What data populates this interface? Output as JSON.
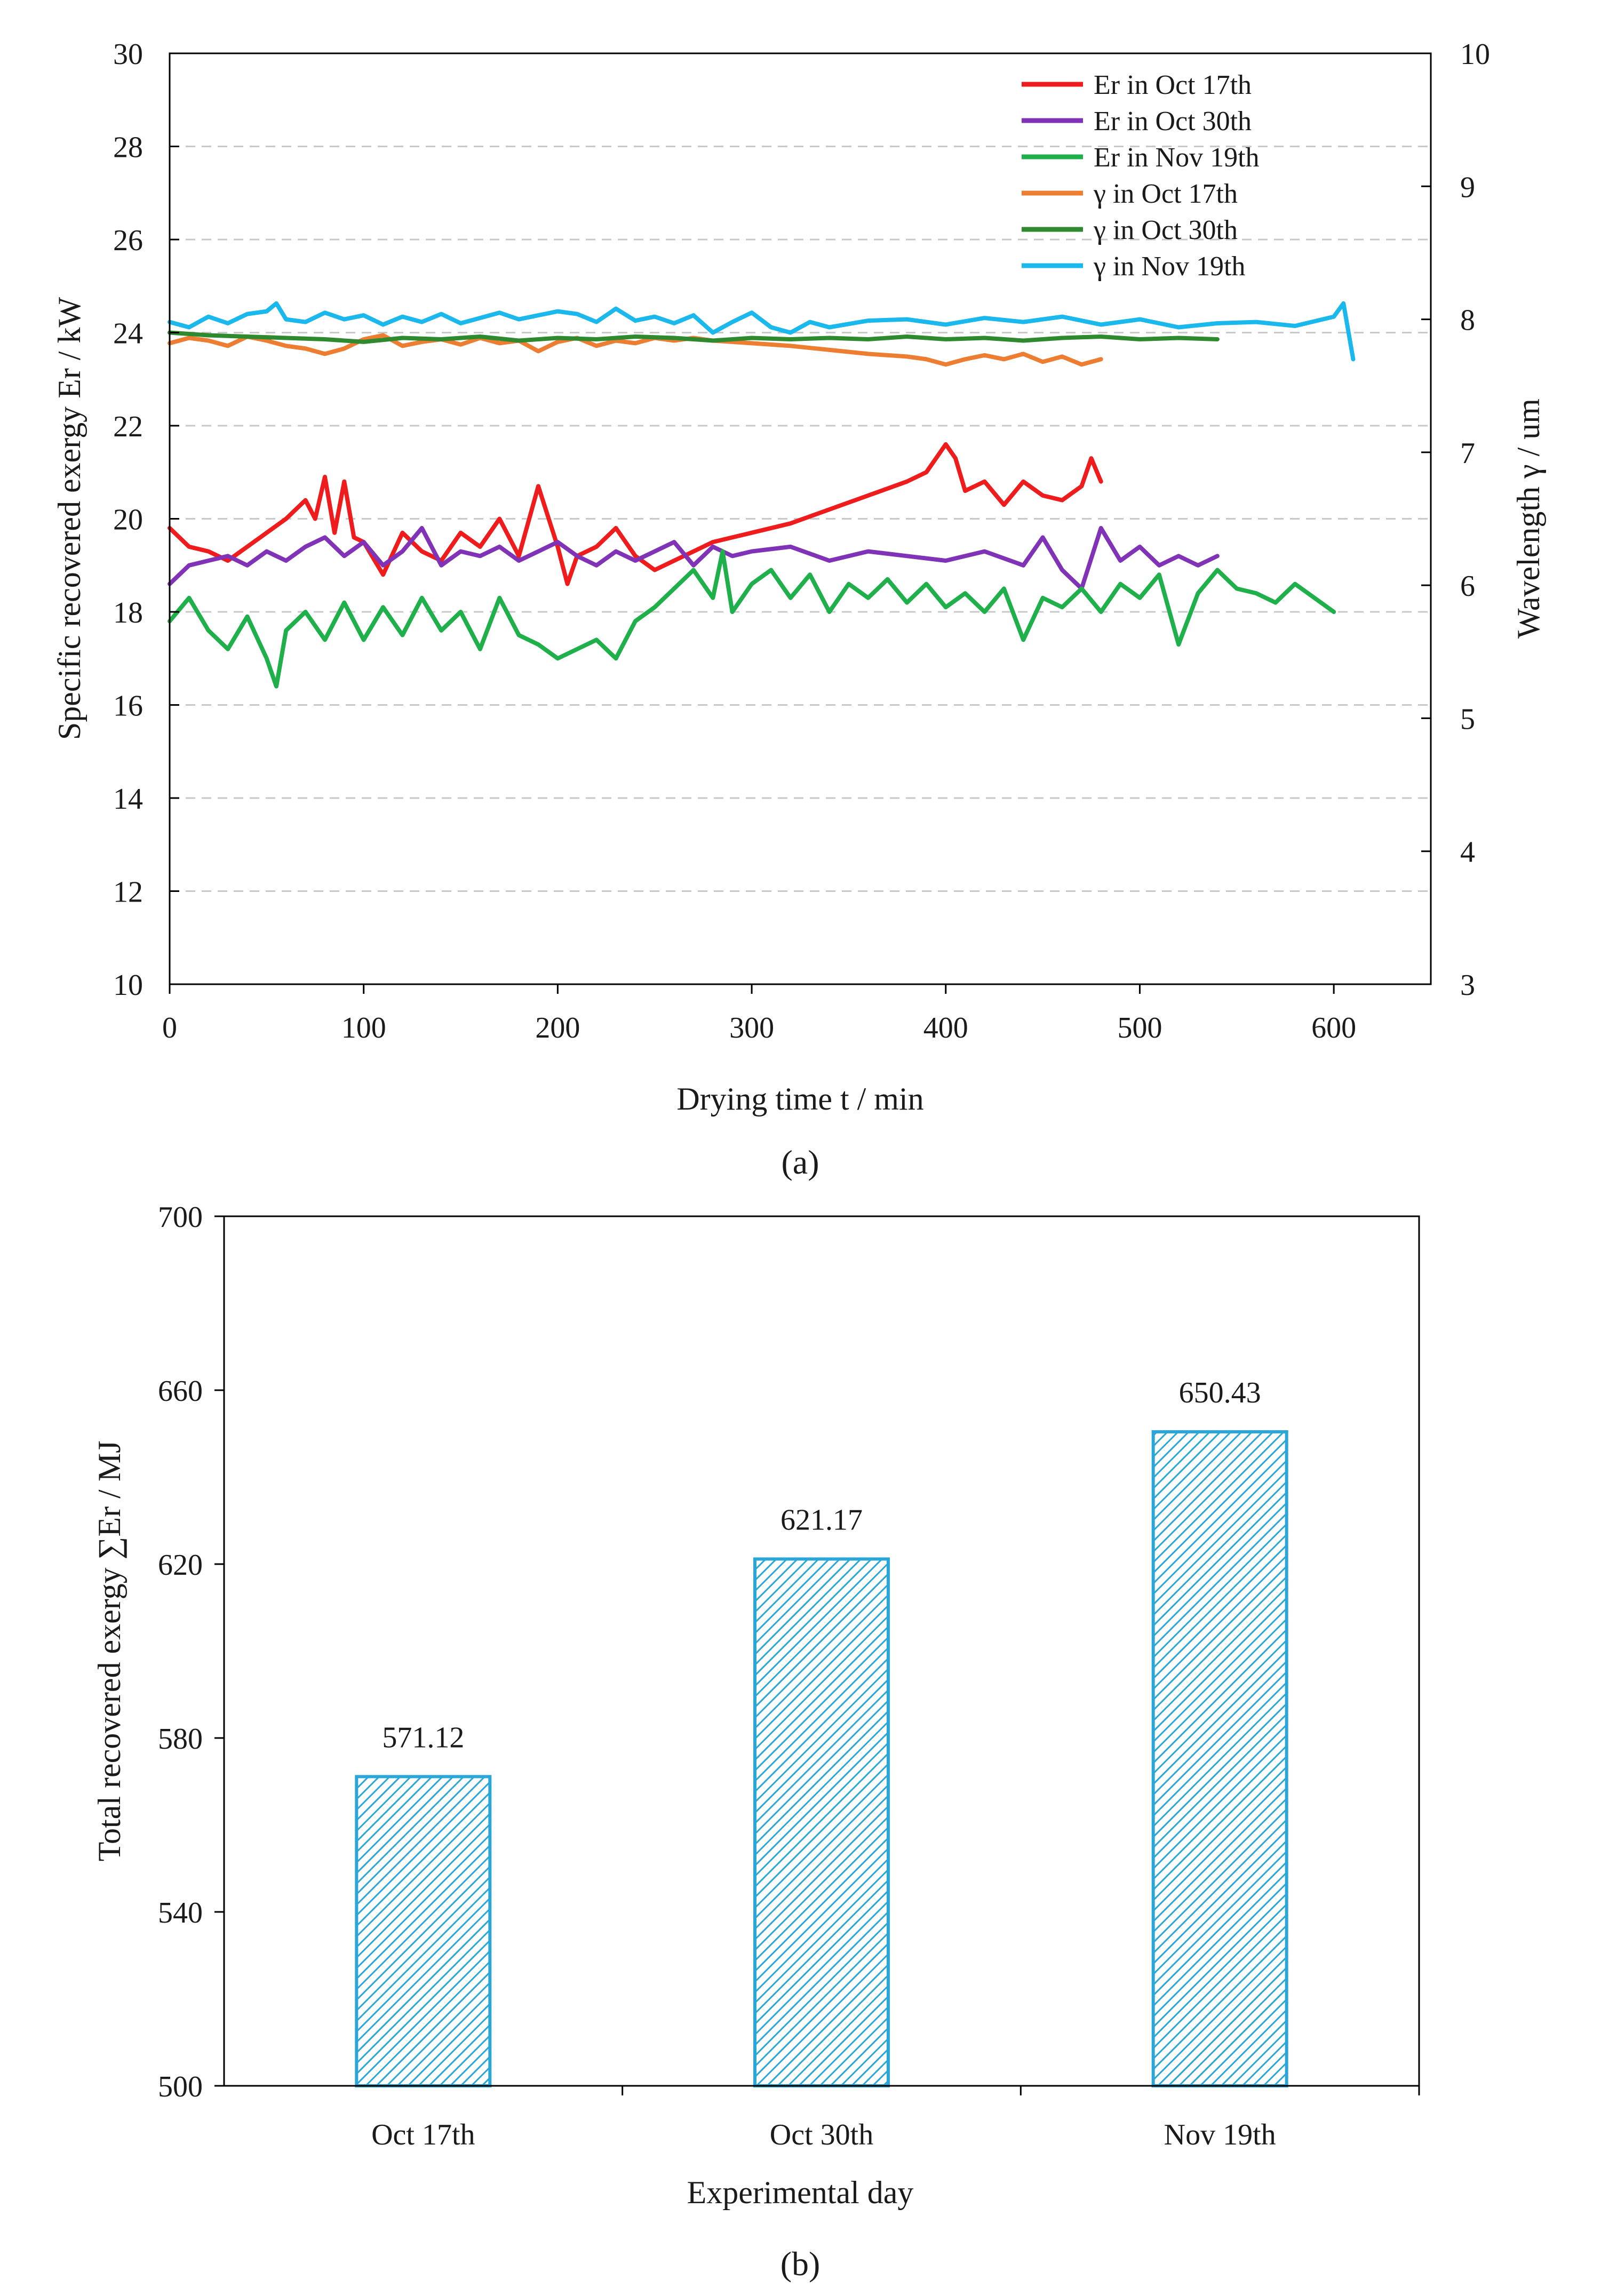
{
  "chart_data": [
    {
      "panel": "(a)",
      "type": "line",
      "xlabel": "Drying time t / min",
      "ylabel_left": "Specific recovered exergy Er / kW",
      "ylabel_right": "Wavelength γ / um",
      "xlim": [
        0,
        650
      ],
      "xticks": [
        0,
        100,
        200,
        300,
        400,
        500,
        600
      ],
      "ylim_left": [
        10,
        30
      ],
      "yticks_left": [
        10,
        12,
        14,
        16,
        18,
        20,
        22,
        24,
        26,
        28,
        30
      ],
      "ylim_right": [
        3,
        10
      ],
      "yticks_right": [
        3,
        4,
        5,
        6,
        7,
        8,
        9,
        10
      ],
      "grid": "horizontal dashed",
      "legend_position": "top-right",
      "series": [
        {
          "name": "Er in Oct 17th",
          "axis": "left",
          "color": "#ee1c1c",
          "x": [
            0,
            10,
            20,
            30,
            40,
            50,
            60,
            70,
            75,
            80,
            85,
            90,
            95,
            100,
            110,
            120,
            130,
            140,
            150,
            160,
            170,
            180,
            190,
            200,
            205,
            210,
            220,
            230,
            240,
            250,
            260,
            270,
            280,
            290,
            300,
            320,
            340,
            360,
            380,
            390,
            400,
            405,
            410,
            420,
            430,
            440,
            450,
            460,
            470,
            475,
            480
          ],
          "y": [
            19.8,
            19.4,
            19.3,
            19.1,
            19.4,
            19.7,
            20.0,
            20.4,
            20.0,
            20.9,
            19.7,
            20.8,
            19.6,
            19.5,
            18.8,
            19.7,
            19.3,
            19.1,
            19.7,
            19.4,
            20.0,
            19.2,
            20.7,
            19.4,
            18.6,
            19.2,
            19.4,
            19.8,
            19.2,
            18.9,
            19.1,
            19.3,
            19.5,
            19.6,
            19.7,
            19.9,
            20.2,
            20.5,
            20.8,
            21.0,
            21.6,
            21.3,
            20.6,
            20.8,
            20.3,
            20.8,
            20.5,
            20.4,
            20.7,
            21.3,
            20.8
          ]
        },
        {
          "name": "Er in Oct 30th",
          "axis": "left",
          "color": "#8033b7",
          "x": [
            0,
            10,
            20,
            30,
            40,
            50,
            60,
            70,
            80,
            90,
            100,
            110,
            120,
            130,
            140,
            150,
            160,
            170,
            180,
            190,
            200,
            210,
            220,
            230,
            240,
            250,
            260,
            270,
            280,
            290,
            300,
            320,
            340,
            360,
            380,
            400,
            420,
            440,
            450,
            460,
            470,
            480,
            490,
            500,
            510,
            520,
            530,
            540
          ],
          "y": [
            18.6,
            19.0,
            19.1,
            19.2,
            19.0,
            19.3,
            19.1,
            19.4,
            19.6,
            19.2,
            19.5,
            19.0,
            19.3,
            19.8,
            19.0,
            19.3,
            19.2,
            19.4,
            19.1,
            19.3,
            19.5,
            19.2,
            19.0,
            19.3,
            19.1,
            19.3,
            19.5,
            19.0,
            19.4,
            19.2,
            19.3,
            19.4,
            19.1,
            19.3,
            19.2,
            19.1,
            19.3,
            19.0,
            19.6,
            18.9,
            18.5,
            19.8,
            19.1,
            19.4,
            19.0,
            19.2,
            19.0,
            19.2
          ]
        },
        {
          "name": "Er in Nov 19th",
          "axis": "left",
          "color": "#1fb04b",
          "x": [
            0,
            10,
            20,
            30,
            40,
            50,
            55,
            60,
            70,
            80,
            90,
            100,
            110,
            120,
            130,
            140,
            150,
            160,
            170,
            180,
            190,
            200,
            210,
            220,
            230,
            240,
            250,
            260,
            270,
            280,
            285,
            290,
            300,
            310,
            320,
            330,
            340,
            350,
            360,
            370,
            380,
            390,
            400,
            410,
            420,
            430,
            440,
            450,
            460,
            470,
            480,
            490,
            500,
            510,
            520,
            530,
            540,
            550,
            560,
            570,
            580,
            590,
            600
          ],
          "y": [
            17.8,
            18.3,
            17.6,
            17.2,
            17.9,
            17.0,
            16.4,
            17.6,
            18.0,
            17.4,
            18.2,
            17.4,
            18.1,
            17.5,
            18.3,
            17.6,
            18.0,
            17.2,
            18.3,
            17.5,
            17.3,
            17.0,
            17.2,
            17.4,
            17.0,
            17.8,
            18.1,
            18.5,
            18.9,
            18.3,
            19.3,
            18.0,
            18.6,
            18.9,
            18.3,
            18.8,
            18.0,
            18.6,
            18.3,
            18.7,
            18.2,
            18.6,
            18.1,
            18.4,
            18.0,
            18.5,
            17.4,
            18.3,
            18.1,
            18.5,
            18.0,
            18.6,
            18.3,
            18.8,
            17.3,
            18.4,
            18.9,
            18.5,
            18.4,
            18.2,
            18.6,
            18.3,
            18.0
          ]
        },
        {
          "name": "γ in Oct 17th",
          "axis": "right",
          "color": "#ed7d31",
          "x": [
            0,
            10,
            20,
            30,
            40,
            50,
            60,
            70,
            80,
            90,
            100,
            110,
            120,
            130,
            140,
            150,
            160,
            170,
            180,
            190,
            200,
            210,
            220,
            230,
            240,
            250,
            260,
            270,
            280,
            300,
            320,
            340,
            360,
            380,
            390,
            400,
            410,
            420,
            430,
            440,
            450,
            460,
            470,
            480
          ],
          "y": [
            7.82,
            7.86,
            7.84,
            7.8,
            7.87,
            7.84,
            7.8,
            7.78,
            7.74,
            7.78,
            7.85,
            7.88,
            7.8,
            7.83,
            7.85,
            7.81,
            7.86,
            7.82,
            7.84,
            7.76,
            7.83,
            7.86,
            7.8,
            7.84,
            7.82,
            7.86,
            7.84,
            7.86,
            7.84,
            7.82,
            7.8,
            7.77,
            7.74,
            7.72,
            7.7,
            7.66,
            7.7,
            7.73,
            7.7,
            7.74,
            7.68,
            7.72,
            7.66,
            7.7
          ]
        },
        {
          "name": "γ in Oct 30th",
          "axis": "right",
          "color": "#2f8a2f",
          "x": [
            0,
            20,
            40,
            60,
            80,
            100,
            120,
            140,
            160,
            180,
            200,
            220,
            240,
            260,
            280,
            300,
            320,
            340,
            360,
            380,
            400,
            420,
            440,
            460,
            480,
            500,
            520,
            540
          ],
          "y": [
            7.9,
            7.88,
            7.87,
            7.86,
            7.85,
            7.83,
            7.86,
            7.85,
            7.87,
            7.84,
            7.86,
            7.85,
            7.87,
            7.86,
            7.84,
            7.86,
            7.85,
            7.86,
            7.85,
            7.87,
            7.85,
            7.86,
            7.84,
            7.86,
            7.87,
            7.85,
            7.86,
            7.85
          ]
        },
        {
          "name": "γ in Nov 19th",
          "axis": "right",
          "color": "#1ab8ec",
          "x": [
            0,
            10,
            20,
            30,
            40,
            50,
            55,
            60,
            70,
            80,
            90,
            100,
            110,
            120,
            130,
            140,
            150,
            160,
            170,
            180,
            190,
            200,
            210,
            220,
            230,
            240,
            250,
            260,
            270,
            280,
            290,
            300,
            310,
            320,
            330,
            340,
            360,
            380,
            400,
            420,
            440,
            460,
            480,
            500,
            520,
            540,
            560,
            580,
            600,
            605,
            610
          ],
          "y": [
            7.98,
            7.94,
            8.02,
            7.97,
            8.04,
            8.06,
            8.12,
            8.0,
            7.98,
            8.05,
            8.0,
            8.03,
            7.96,
            8.02,
            7.98,
            8.04,
            7.97,
            8.01,
            8.05,
            8.0,
            8.03,
            8.06,
            8.04,
            7.98,
            8.08,
            7.99,
            8.02,
            7.97,
            8.03,
            7.9,
            7.98,
            8.05,
            7.94,
            7.9,
            7.98,
            7.94,
            7.99,
            8.0,
            7.96,
            8.01,
            7.98,
            8.02,
            7.96,
            8.0,
            7.94,
            7.97,
            7.98,
            7.95,
            8.02,
            8.12,
            7.7
          ]
        }
      ]
    },
    {
      "panel": "(b)",
      "type": "bar",
      "xlabel": "Experimental day",
      "ylabel": "Total recovered exergy ∑Er / MJ",
      "categories": [
        "Oct 17th",
        "Oct 30th",
        "Nov 19th"
      ],
      "values": [
        571.12,
        621.17,
        650.43
      ],
      "value_labels": [
        "571.12",
        "621.17",
        "650.43"
      ],
      "ylim": [
        500,
        700
      ],
      "yticks": [
        500,
        540,
        580,
        620,
        660,
        700
      ],
      "bar_fill": "diagonal hatch",
      "bar_color": "#2aa6d8"
    }
  ]
}
